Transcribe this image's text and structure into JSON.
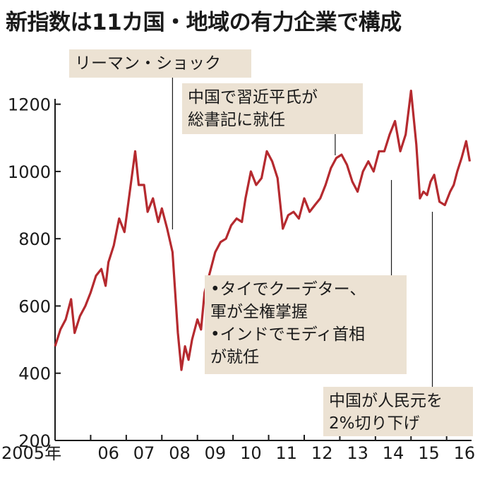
{
  "chart_data": {
    "type": "line",
    "title": "新指数は11カ国・地域の有力企業で構成",
    "xlabel": "",
    "ylabel": "",
    "ylim": [
      200,
      1300
    ],
    "xlim": [
      2005.0,
      2016.7
    ],
    "y_ticks": [
      "1200",
      "1000",
      "800",
      "600",
      "400",
      "200"
    ],
    "x_ticks": [
      "2005年",
      "06",
      "07",
      "08",
      "09",
      "10",
      "11",
      "12",
      "13",
      "14",
      "15",
      "16"
    ],
    "series": [
      {
        "color": "#b52a2f",
        "x": [
          2005.0,
          2005.15,
          2005.3,
          2005.45,
          2005.55,
          2005.7,
          2005.85,
          2006.0,
          2006.15,
          2006.3,
          2006.42,
          2006.5,
          2006.65,
          2006.8,
          2006.95,
          2007.1,
          2007.25,
          2007.35,
          2007.5,
          2007.6,
          2007.75,
          2007.9,
          2008.0,
          2008.15,
          2008.3,
          2008.45,
          2008.55,
          2008.65,
          2008.75,
          2008.85,
          2009.0,
          2009.1,
          2009.2,
          2009.35,
          2009.5,
          2009.65,
          2009.8,
          2009.95,
          2010.1,
          2010.25,
          2010.35,
          2010.5,
          2010.65,
          2010.8,
          2010.95,
          2011.1,
          2011.25,
          2011.4,
          2011.55,
          2011.7,
          2011.85,
          2012.0,
          2012.15,
          2012.3,
          2012.45,
          2012.6,
          2012.75,
          2012.9,
          2013.05,
          2013.2,
          2013.35,
          2013.5,
          2013.65,
          2013.8,
          2013.95,
          2014.1,
          2014.25,
          2014.4,
          2014.55,
          2014.7,
          2014.85,
          2015.0,
          2015.15,
          2015.25,
          2015.35,
          2015.45,
          2015.55,
          2015.65,
          2015.8,
          2015.95,
          2016.1,
          2016.2,
          2016.3,
          2016.42,
          2016.55,
          2016.65
        ],
        "values": [
          480,
          530,
          560,
          620,
          520,
          570,
          600,
          640,
          690,
          710,
          660,
          730,
          780,
          860,
          820,
          940,
          1060,
          960,
          960,
          880,
          920,
          850,
          890,
          830,
          760,
          520,
          410,
          480,
          440,
          500,
          560,
          530,
          640,
          700,
          760,
          790,
          800,
          840,
          860,
          850,
          920,
          1000,
          960,
          980,
          1060,
          1030,
          980,
          830,
          870,
          880,
          860,
          920,
          880,
          900,
          920,
          960,
          1010,
          1040,
          1050,
          1020,
          970,
          940,
          1000,
          1030,
          1000,
          1060,
          1060,
          1110,
          1150,
          1060,
          1110,
          1240,
          1080,
          920,
          940,
          930,
          970,
          990,
          910,
          900,
          940,
          960,
          1000,
          1040,
          1090,
          1030
        ]
      }
    ],
    "annotations": [
      {
        "lines": [
          "リーマン・ショック"
        ],
        "x": 2008.3
      },
      {
        "lines": [
          "中国で習近平氏が",
          "総書記に就任"
        ],
        "x": 2012.87
      },
      {
        "lines": [
          "•タイでクーデター、",
          " 軍が全権掌握",
          "•インドでモディ首相",
          " が就任"
        ],
        "x": 2014.45
      },
      {
        "lines": [
          "中国が人民元を",
          "2%切り下げ"
        ],
        "x": 2015.6
      }
    ]
  }
}
